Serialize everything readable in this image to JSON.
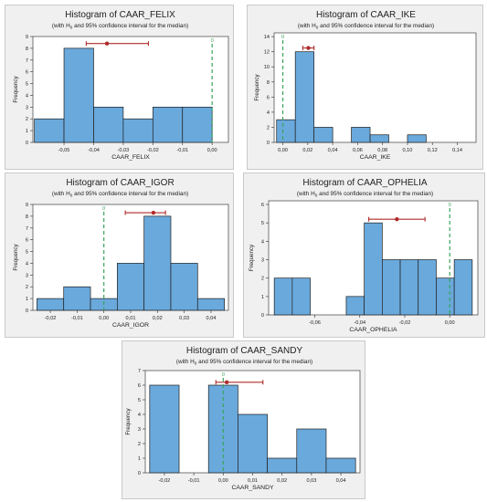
{
  "subtitle_parts": {
    "pre": "(with H",
    "sub": "0",
    "post": " and 95% confidence interval for the median)"
  },
  "colors": {
    "bar_fill": "#6aa9dc",
    "bar_stroke": "#1f1f1f",
    "ci": "#b02a2a",
    "h0": "#3aa35a",
    "panel_bg": "#f0f0f0"
  },
  "chart_data": [
    {
      "type": "bar",
      "title": "Histogram of CAAR_FELIX",
      "xlabel": "CAAR_FELIX",
      "ylabel": "Frequency",
      "bins": [
        [
          -0.06,
          -0.05,
          2
        ],
        [
          -0.05,
          -0.04,
          8
        ],
        [
          -0.04,
          -0.03,
          3
        ],
        [
          -0.03,
          -0.02,
          2
        ],
        [
          -0.02,
          -0.01,
          3
        ],
        [
          -0.01,
          0.0,
          3
        ]
      ],
      "xlim": [
        -0.0605,
        0.0055
      ],
      "xticks": [
        -0.05,
        -0.04,
        -0.03,
        -0.02,
        -0.01,
        0.0
      ],
      "xtick_labels": [
        "-0,05",
        "-0,04",
        "-0,03",
        "-0,02",
        "-0,01",
        "0,00"
      ],
      "ylim": [
        0,
        9
      ],
      "yticks": [
        0,
        1,
        2,
        3,
        4,
        5,
        6,
        7,
        8,
        9
      ],
      "h0": 0.0,
      "h0_label": "0",
      "ci": {
        "low": -0.0425,
        "high": -0.0215,
        "median": -0.0355,
        "y": 8.4
      }
    },
    {
      "type": "bar",
      "title": "Histogram of CAAR_IKE",
      "xlabel": "CAAR_IKE",
      "ylabel": "Frequency",
      "bins": [
        [
          -0.005,
          0.01,
          3
        ],
        [
          0.01,
          0.025,
          12
        ],
        [
          0.025,
          0.04,
          2
        ],
        [
          0.04,
          0.055,
          0
        ],
        [
          0.055,
          0.07,
          2
        ],
        [
          0.07,
          0.085,
          1
        ],
        [
          0.085,
          0.1,
          0
        ],
        [
          0.1,
          0.115,
          1
        ]
      ],
      "xlim": [
        -0.007,
        0.155
      ],
      "xticks": [
        0.0,
        0.02,
        0.04,
        0.06,
        0.08,
        0.1,
        0.12,
        0.14
      ],
      "xtick_labels": [
        "0,00",
        "0,02",
        "0,04",
        "0,06",
        "0,08",
        "0,10",
        "0,12",
        "0,14"
      ],
      "ylim": [
        0,
        14.5
      ],
      "yticks": [
        0,
        2,
        4,
        6,
        8,
        10,
        12,
        14
      ],
      "h0": 0.0,
      "h0_label": "0",
      "ci": {
        "low": 0.016,
        "high": 0.025,
        "median": 0.0205,
        "y": 12.5
      }
    },
    {
      "type": "bar",
      "title": "Histogram of CAAR_IGOR",
      "xlabel": "CAAR_IGOR",
      "ylabel": "Frequency",
      "bins": [
        [
          -0.025,
          -0.015,
          1
        ],
        [
          -0.015,
          -0.005,
          2
        ],
        [
          -0.005,
          0.005,
          1
        ],
        [
          0.005,
          0.015,
          4
        ],
        [
          0.015,
          0.025,
          8
        ],
        [
          0.025,
          0.035,
          4
        ],
        [
          0.035,
          0.045,
          1
        ]
      ],
      "xlim": [
        -0.0265,
        0.0465
      ],
      "xticks": [
        -0.02,
        -0.01,
        0.0,
        0.01,
        0.02,
        0.03,
        0.04
      ],
      "xtick_labels": [
        "-0,02",
        "-0,01",
        "0,00",
        "0,01",
        "0,02",
        "0,03",
        "0,04"
      ],
      "ylim": [
        0,
        9
      ],
      "yticks": [
        0,
        1,
        2,
        3,
        4,
        5,
        6,
        7,
        8,
        9
      ],
      "h0": 0.0,
      "h0_label": "0",
      "ci": {
        "low": 0.008,
        "high": 0.023,
        "median": 0.0185,
        "y": 8.3
      }
    },
    {
      "type": "bar",
      "title": "Histogram of CAAR_OPHELIA",
      "xlabel": "CAAR_OPHELIA",
      "ylabel": "Frequency",
      "bins": [
        [
          -0.078,
          -0.07,
          2
        ],
        [
          -0.07,
          -0.062,
          2
        ],
        [
          -0.062,
          -0.054,
          0
        ],
        [
          -0.054,
          -0.046,
          0
        ],
        [
          -0.046,
          -0.038,
          1
        ],
        [
          -0.038,
          -0.03,
          5
        ],
        [
          -0.03,
          -0.022,
          3
        ],
        [
          -0.022,
          -0.014,
          3
        ],
        [
          -0.014,
          -0.006,
          3
        ],
        [
          -0.006,
          0.002,
          2
        ],
        [
          0.002,
          0.01,
          3
        ]
      ],
      "xlim": [
        -0.0805,
        0.0125
      ],
      "xticks": [
        -0.06,
        -0.04,
        -0.02,
        0.0
      ],
      "xtick_labels": [
        "-0,06",
        "-0,04",
        "-0,02",
        "0,00"
      ],
      "ylim": [
        0,
        6.2
      ],
      "yticks": [
        0,
        1,
        2,
        3,
        4,
        5,
        6
      ],
      "h0": 0.0,
      "h0_label": "0",
      "ci": {
        "low": -0.036,
        "high": -0.011,
        "median": -0.0235,
        "y": 5.2
      }
    },
    {
      "type": "bar",
      "title": "Histogram of CAAR_SANDY",
      "xlabel": "CAAR_SANDY",
      "ylabel": "Frequency",
      "bins": [
        [
          -0.025,
          -0.015,
          6
        ],
        [
          -0.015,
          -0.005,
          0
        ],
        [
          -0.005,
          0.005,
          6
        ],
        [
          0.005,
          0.015,
          4
        ],
        [
          0.015,
          0.025,
          1
        ],
        [
          0.025,
          0.035,
          3
        ],
        [
          0.035,
          0.045,
          1
        ]
      ],
      "xlim": [
        -0.0265,
        0.0465
      ],
      "xticks": [
        -0.02,
        -0.01,
        0.0,
        0.01,
        0.02,
        0.03,
        0.04
      ],
      "xtick_labels": [
        "-0,02",
        "-0,01",
        "0,00",
        "0,01",
        "0,02",
        "0,03",
        "0,04"
      ],
      "ylim": [
        0,
        7
      ],
      "yticks": [
        0,
        1,
        2,
        3,
        4,
        5,
        6,
        7
      ],
      "h0": 0.0,
      "h0_label": "0",
      "ci": {
        "low": -0.0025,
        "high": 0.0135,
        "median": 0.0012,
        "y": 6.2
      }
    }
  ]
}
